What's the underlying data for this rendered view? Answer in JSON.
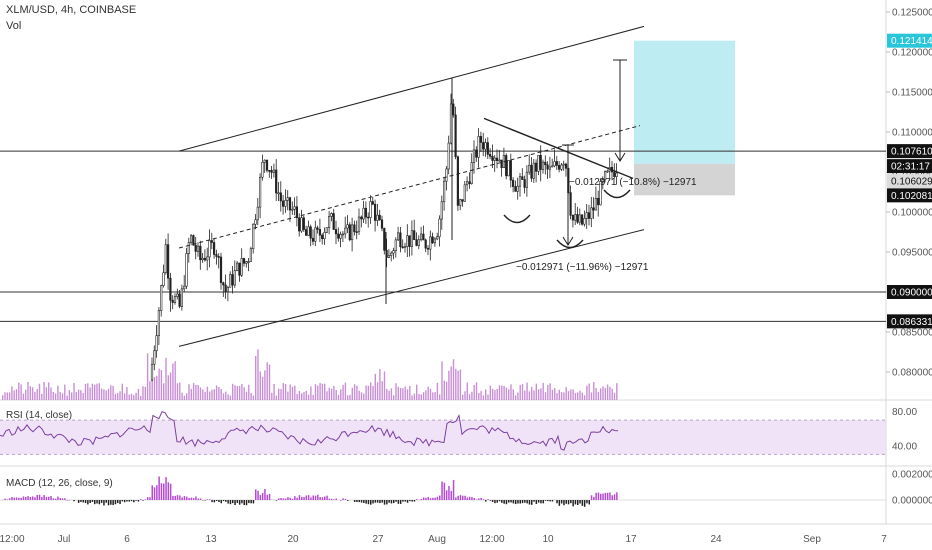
{
  "header": {
    "symbol": "XLM/USD, 4h, COINBASE",
    "volume_label": "Vol"
  },
  "indicators": {
    "rsi_label": "RSI (14, close)",
    "macd_label": "MACD (12, 26, close, 9)"
  },
  "colors": {
    "up": "#26a69a",
    "down": "#ef5350",
    "candle": "#222222",
    "volume": "#c88fd6",
    "rsi_line": "#7b3fa0",
    "rsi_band": "#eedcf5",
    "target_box": "#a8e6ef",
    "stop_box": "#c9c9c9",
    "tag_cyan": "#29c6d9",
    "tag_black": "#111111"
  },
  "chart_data": {
    "type": "candlestick",
    "x_tick_labels": [
      "12:00",
      "Jul",
      "6",
      "13",
      "20",
      "27",
      "Aug",
      "12:00",
      "10",
      "17",
      "24",
      "Sep",
      "7"
    ],
    "price_axis_labels": [
      "0.125000",
      "0.120000",
      "0.115000",
      "0.110000",
      "0.105000",
      "0.100000",
      "0.095000",
      "0.090000",
      "0.085000",
      "0.080000"
    ],
    "rsi_axis_labels": [
      "80.00",
      "40.00"
    ],
    "macd_axis_labels": [
      "0.002000",
      "0.000000"
    ],
    "price_tags": [
      {
        "label": "0.121414",
        "value": 0.121414,
        "style": "cyan"
      },
      {
        "label": "0.107610",
        "value": 0.10761,
        "style": "black"
      },
      {
        "label": "02:31:17",
        "value": 0.1066,
        "style": "black"
      },
      {
        "label": "0.106029",
        "value": 0.106029,
        "style": "grey"
      },
      {
        "label": "0.102081",
        "value": 0.102081,
        "style": "black"
      },
      {
        "label": "0.090000",
        "value": 0.09,
        "style": "black"
      },
      {
        "label": "0.086331",
        "value": 0.086331,
        "style": "black"
      }
    ],
    "horizontal_levels": [
      0.10761,
      0.09,
      0.086331
    ],
    "annotations": [
      {
        "text": "−0.012971 (−10.8%) −12971"
      },
      {
        "text": "−0.012971 (−11.96%) −12971"
      }
    ],
    "price_range": [
      0.0765,
      0.1265
    ]
  }
}
